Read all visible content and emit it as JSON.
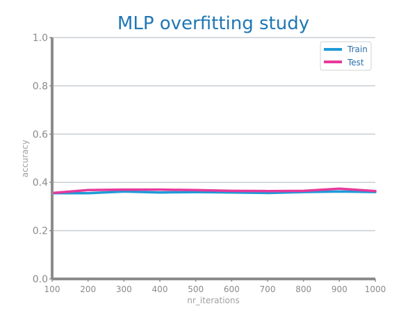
{
  "chart_data": {
    "type": "line",
    "title": "MLP overfitting study",
    "xlabel": "nr_iterations",
    "ylabel": "accuracy",
    "x": [
      100,
      200,
      300,
      400,
      500,
      600,
      700,
      800,
      900,
      1000
    ],
    "xlim": [
      100,
      1000
    ],
    "ylim": [
      0.0,
      1.0
    ],
    "xticks": [
      "100",
      "200",
      "300",
      "400",
      "500",
      "600",
      "700",
      "800",
      "900",
      "1000"
    ],
    "yticks": [
      "0.0",
      "0.2",
      "0.4",
      "0.6",
      "0.8",
      "1.0"
    ],
    "grid": "horizontal",
    "legend_position": "top-right",
    "series": [
      {
        "name": "Train",
        "color": "#1f9bd7",
        "values": [
          0.355,
          0.355,
          0.362,
          0.358,
          0.36,
          0.358,
          0.356,
          0.36,
          0.362,
          0.36
        ]
      },
      {
        "name": "Test",
        "color": "#e6399b",
        "values": [
          0.356,
          0.368,
          0.37,
          0.37,
          0.368,
          0.365,
          0.364,
          0.365,
          0.374,
          0.364
        ]
      }
    ]
  }
}
